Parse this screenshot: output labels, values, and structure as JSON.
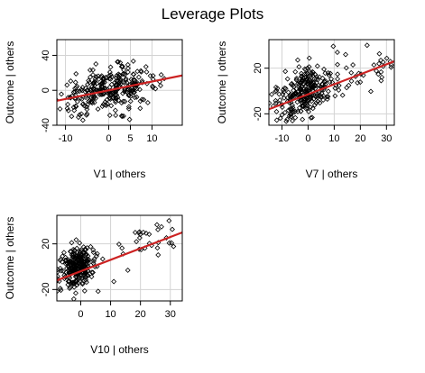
{
  "title": "Leverage Plots",
  "colors": {
    "fit_line": "#cc2222",
    "points": "#000000",
    "grid": "#d3d3d3"
  },
  "chart_data": [
    {
      "type": "scatter",
      "xlabel": "V1 | others",
      "ylabel": "Outcome  | others",
      "xlim": [
        -12,
        17
      ],
      "ylim": [
        -40,
        58
      ],
      "xticks": [
        -10,
        0,
        5,
        10
      ],
      "yticks": [
        -40,
        0,
        40
      ],
      "grid": true,
      "fit_line": {
        "x": [
          -12,
          17
        ],
        "y": [
          -12,
          17
        ]
      },
      "cloud": {
        "x_center": 0,
        "x_spread": 5.5,
        "y_center": 0,
        "y_spread": 12,
        "slope": 1.0,
        "n": 300
      }
    },
    {
      "type": "scatter",
      "xlabel": "V7 | others",
      "ylabel": "Outcome  | others",
      "xlim": [
        -15,
        33
      ],
      "ylim": [
        -30,
        45
      ],
      "xticks": [
        -10,
        0,
        10,
        20,
        30
      ],
      "yticks": [
        -20,
        20
      ],
      "grid": true,
      "fit_line": {
        "x": [
          -15,
          33
        ],
        "y": [
          -16,
          26
        ]
      },
      "cloud": {
        "x_center": -1,
        "x_spread": 6,
        "y_center": 0,
        "y_spread": 10,
        "slope": 0.87,
        "n": 300
      }
    },
    {
      "type": "scatter",
      "xlabel": "V10 | others",
      "ylabel": "Outcome  | others",
      "xlim": [
        -8,
        34
      ],
      "ylim": [
        -30,
        45
      ],
      "xticks": [
        0,
        10,
        20,
        30
      ],
      "yticks": [
        -20,
        20
      ],
      "grid": true,
      "fit_line": {
        "x": [
          -8,
          34
        ],
        "y": [
          -12,
          30
        ]
      },
      "cloud": {
        "x_center": -1,
        "x_spread": 3,
        "y_center": 0,
        "y_spread": 9,
        "slope": 1.0,
        "n": 300
      }
    }
  ]
}
